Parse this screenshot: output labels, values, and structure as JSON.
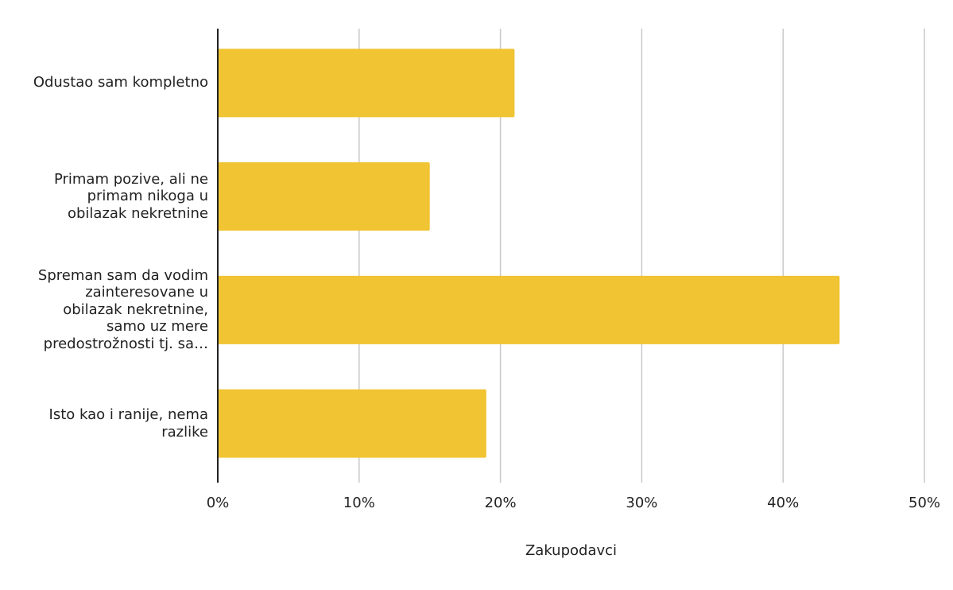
{
  "chart_data": {
    "type": "bar",
    "orientation": "horizontal",
    "categories": [
      "Odustao sam kompletno",
      "Primam pozive, ali ne primam nikoga u obilazak nekretnine",
      "Spreman sam da vodim zainteresovane u obilazak nekretnine, samo uz mere predostrožnosti tj. sa…",
      "Isto kao i ranije, nema razlike"
    ],
    "values": [
      21,
      15,
      44,
      19
    ],
    "xlabel": "Zakupodavci",
    "xlim": [
      0,
      50
    ],
    "x_ticks": [
      "0%",
      "10%",
      "20%",
      "30%",
      "40%",
      "50%"
    ],
    "grid": true,
    "bar_color": "#F0C432",
    "grid_color": "#c8c8c8",
    "axis_color": "#222222"
  }
}
